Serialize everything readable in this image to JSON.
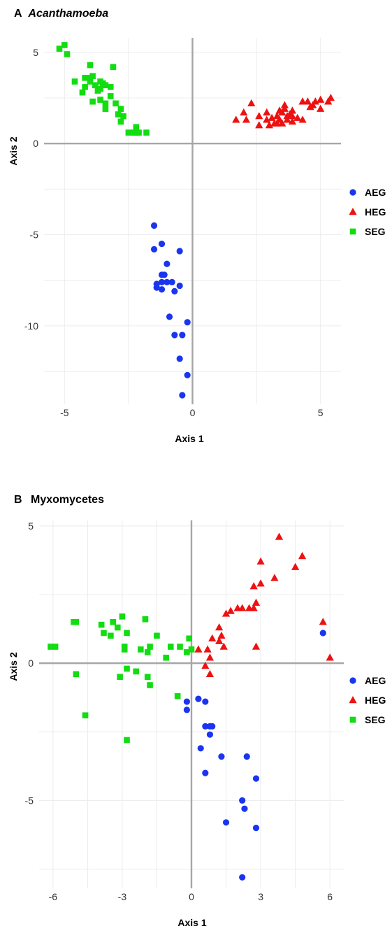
{
  "legend": {
    "items": [
      {
        "label": "AEG",
        "shape": "circle",
        "color": "#1a35f0"
      },
      {
        "label": "HEG",
        "shape": "triangle",
        "color": "#ee1111"
      },
      {
        "label": "SEG",
        "shape": "square",
        "color": "#11dd11"
      }
    ]
  },
  "chart_data": [
    {
      "type": "scatter",
      "panel_letter": "A",
      "title": "Acanthamoeba",
      "xlabel": "Axis 1",
      "ylabel": "Axis 2",
      "xlim": [
        -5.8,
        5.8
      ],
      "ylim": [
        -14.3,
        5.8
      ],
      "xticks": [
        -5,
        0,
        5
      ],
      "yticks": [
        5,
        0,
        -5,
        -10
      ],
      "grid": true,
      "legend_position": "right",
      "series": [
        {
          "name": "AEG",
          "shape": "circle",
          "color": "#1a35f0",
          "points": [
            [
              -1.5,
              -4.5
            ],
            [
              -1.5,
              -5.8
            ],
            [
              -1.2,
              -5.5
            ],
            [
              -0.5,
              -5.9
            ],
            [
              -1.0,
              -6.6
            ],
            [
              -1.1,
              -7.2
            ],
            [
              -1.2,
              -7.2
            ],
            [
              -1.4,
              -7.7
            ],
            [
              -1.2,
              -7.6
            ],
            [
              -1.0,
              -7.6
            ],
            [
              -0.8,
              -7.6
            ],
            [
              -0.5,
              -7.8
            ],
            [
              -1.4,
              -7.9
            ],
            [
              -1.2,
              -8.0
            ],
            [
              -0.7,
              -8.1
            ],
            [
              -0.9,
              -9.5
            ],
            [
              -0.2,
              -9.8
            ],
            [
              -0.7,
              -10.5
            ],
            [
              -0.4,
              -10.5
            ],
            [
              -0.5,
              -11.8
            ],
            [
              -0.2,
              -12.7
            ],
            [
              -0.4,
              -13.8
            ]
          ]
        },
        {
          "name": "HEG",
          "shape": "triangle",
          "color": "#ee1111",
          "points": [
            [
              1.7,
              1.3
            ],
            [
              2.0,
              1.7
            ],
            [
              2.1,
              1.3
            ],
            [
              2.3,
              2.2
            ],
            [
              2.6,
              1.5
            ],
            [
              2.6,
              1.0
            ],
            [
              2.9,
              1.7
            ],
            [
              2.9,
              1.3
            ],
            [
              3.0,
              1.0
            ],
            [
              3.1,
              1.4
            ],
            [
              3.2,
              1.1
            ],
            [
              3.3,
              1.5
            ],
            [
              3.4,
              1.8
            ],
            [
              3.4,
              1.3
            ],
            [
              3.5,
              1.1
            ],
            [
              3.5,
              1.7
            ],
            [
              3.6,
              2.1
            ],
            [
              3.6,
              1.9
            ],
            [
              3.7,
              1.5
            ],
            [
              3.7,
              1.3
            ],
            [
              3.8,
              1.6
            ],
            [
              3.9,
              1.2
            ],
            [
              3.9,
              1.8
            ],
            [
              3.9,
              1.5
            ],
            [
              4.1,
              1.4
            ],
            [
              4.3,
              1.3
            ],
            [
              4.3,
              2.3
            ],
            [
              4.5,
              2.3
            ],
            [
              4.7,
              2.1
            ],
            [
              4.8,
              2.3
            ],
            [
              5.0,
              1.9
            ],
            [
              5.0,
              2.4
            ],
            [
              5.3,
              2.3
            ],
            [
              5.4,
              2.5
            ],
            [
              4.6,
              2.0
            ],
            [
              3.3,
              1.1
            ]
          ]
        },
        {
          "name": "SEG",
          "shape": "square",
          "color": "#11dd11",
          "points": [
            [
              -5.2,
              5.2
            ],
            [
              -5.0,
              5.4
            ],
            [
              -4.9,
              4.9
            ],
            [
              -4.6,
              3.4
            ],
            [
              -4.3,
              2.8
            ],
            [
              -4.2,
              3.6
            ],
            [
              -4.2,
              3.1
            ],
            [
              -4.0,
              3.6
            ],
            [
              -4.0,
              3.4
            ],
            [
              -4.0,
              4.3
            ],
            [
              -3.9,
              3.7
            ],
            [
              -3.9,
              2.3
            ],
            [
              -3.8,
              3.2
            ],
            [
              -3.7,
              2.9
            ],
            [
              -3.6,
              3.4
            ],
            [
              -3.6,
              3.0
            ],
            [
              -3.5,
              3.3
            ],
            [
              -3.6,
              2.4
            ],
            [
              -3.4,
              3.2
            ],
            [
              -3.4,
              2.2
            ],
            [
              -3.4,
              1.9
            ],
            [
              -3.2,
              3.1
            ],
            [
              -3.2,
              2.6
            ],
            [
              -3.1,
              4.2
            ],
            [
              -3.0,
              2.2
            ],
            [
              -2.9,
              1.6
            ],
            [
              -2.8,
              1.9
            ],
            [
              -2.8,
              1.2
            ],
            [
              -2.7,
              1.5
            ],
            [
              -2.5,
              0.6
            ],
            [
              -2.3,
              0.6
            ],
            [
              -2.2,
              0.9
            ],
            [
              -2.1,
              0.6
            ],
            [
              -1.8,
              0.6
            ],
            [
              -2.2,
              0.6
            ]
          ]
        }
      ]
    },
    {
      "type": "scatter",
      "panel_letter": "B",
      "title": "Myxomycetes",
      "xlabel": "Axis 1",
      "ylabel": "Axis 2",
      "xlim": [
        -6.6,
        6.6
      ],
      "ylim": [
        -8.2,
        5.2
      ],
      "xticks": [
        -6,
        -3,
        0,
        3,
        6
      ],
      "yticks": [
        5,
        0,
        -5
      ],
      "grid": true,
      "legend_position": "right",
      "series": [
        {
          "name": "AEG",
          "shape": "circle",
          "color": "#1a35f0",
          "points": [
            [
              -0.2,
              -1.4
            ],
            [
              -0.2,
              -1.7
            ],
            [
              0.3,
              -1.3
            ],
            [
              0.6,
              -1.4
            ],
            [
              0.6,
              -2.3
            ],
            [
              0.8,
              -2.3
            ],
            [
              0.8,
              -2.6
            ],
            [
              0.9,
              -2.3
            ],
            [
              0.4,
              -3.1
            ],
            [
              1.3,
              -3.4
            ],
            [
              0.6,
              -4.0
            ],
            [
              2.4,
              -3.4
            ],
            [
              2.8,
              -4.2
            ],
            [
              2.2,
              -5.0
            ],
            [
              2.3,
              -5.3
            ],
            [
              1.5,
              -5.8
            ],
            [
              2.8,
              -6.0
            ],
            [
              2.2,
              -7.8
            ],
            [
              5.7,
              1.1
            ]
          ]
        },
        {
          "name": "HEG",
          "shape": "triangle",
          "color": "#ee1111",
          "points": [
            [
              0.3,
              0.5
            ],
            [
              0.7,
              0.5
            ],
            [
              0.8,
              0.2
            ],
            [
              0.9,
              0.9
            ],
            [
              0.6,
              -0.1
            ],
            [
              0.8,
              -0.4
            ],
            [
              1.2,
              0.8
            ],
            [
              1.2,
              1.3
            ],
            [
              1.3,
              1.0
            ],
            [
              1.4,
              0.6
            ],
            [
              1.5,
              1.8
            ],
            [
              1.7,
              1.9
            ],
            [
              2.0,
              2.0
            ],
            [
              2.2,
              2.0
            ],
            [
              2.5,
              2.0
            ],
            [
              2.7,
              2.0
            ],
            [
              2.8,
              2.2
            ],
            [
              2.7,
              2.8
            ],
            [
              3.0,
              2.9
            ],
            [
              3.0,
              3.7
            ],
            [
              3.6,
              3.1
            ],
            [
              3.8,
              4.6
            ],
            [
              4.5,
              3.5
            ],
            [
              4.8,
              3.9
            ],
            [
              2.8,
              0.6
            ],
            [
              5.7,
              1.5
            ],
            [
              6.0,
              0.2
            ]
          ]
        },
        {
          "name": "SEG",
          "shape": "square",
          "color": "#11dd11",
          "points": [
            [
              -6.1,
              0.6
            ],
            [
              -5.9,
              0.6
            ],
            [
              -5.1,
              1.5
            ],
            [
              -5.0,
              1.5
            ],
            [
              -5.0,
              -0.4
            ],
            [
              -4.6,
              -1.9
            ],
            [
              -3.9,
              1.4
            ],
            [
              -3.8,
              1.1
            ],
            [
              -3.5,
              1.0
            ],
            [
              -3.4,
              1.5
            ],
            [
              -3.2,
              1.3
            ],
            [
              -3.0,
              1.7
            ],
            [
              -2.9,
              0.6
            ],
            [
              -2.9,
              0.5
            ],
            [
              -2.8,
              1.1
            ],
            [
              -3.1,
              -0.5
            ],
            [
              -2.8,
              -0.2
            ],
            [
              -2.8,
              -2.8
            ],
            [
              -2.4,
              -0.3
            ],
            [
              -2.2,
              0.5
            ],
            [
              -2.0,
              1.6
            ],
            [
              -1.9,
              0.4
            ],
            [
              -1.8,
              0.6
            ],
            [
              -1.9,
              -0.5
            ],
            [
              -1.8,
              -0.8
            ],
            [
              -1.5,
              1.0
            ],
            [
              -1.1,
              0.2
            ],
            [
              -0.9,
              0.6
            ],
            [
              -0.5,
              0.6
            ],
            [
              -0.1,
              0.9
            ],
            [
              0.0,
              0.5
            ],
            [
              -0.6,
              -1.2
            ],
            [
              -0.2,
              0.4
            ]
          ]
        }
      ]
    }
  ]
}
